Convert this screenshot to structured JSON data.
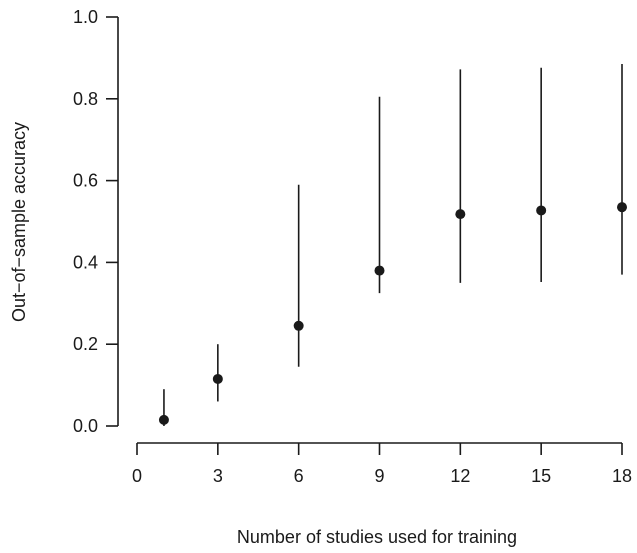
{
  "chart_data": {
    "type": "scatter",
    "title": "",
    "xlabel": "Number of studies used for training",
    "ylabel": "Out−of−sample accuracy",
    "x_ticks": [
      0,
      3,
      6,
      9,
      12,
      15,
      18
    ],
    "x_tick_labels": [
      "0",
      "3",
      "6",
      "9",
      "12",
      "15",
      "18"
    ],
    "y_ticks": [
      0.0,
      0.2,
      0.4,
      0.6,
      0.8,
      1.0
    ],
    "y_tick_labels": [
      "0.0",
      "0.2",
      "0.4",
      "0.6",
      "0.8",
      "1.0"
    ],
    "xlim": [
      0,
      18
    ],
    "ylim": [
      0,
      1
    ],
    "grid": false,
    "points": [
      {
        "x": 1,
        "y": 0.015,
        "low": 0.0,
        "high": 0.09
      },
      {
        "x": 3,
        "y": 0.115,
        "low": 0.06,
        "high": 0.2
      },
      {
        "x": 6,
        "y": 0.245,
        "low": 0.145,
        "high": 0.59
      },
      {
        "x": 9,
        "y": 0.38,
        "low": 0.325,
        "high": 0.805
      },
      {
        "x": 12,
        "y": 0.518,
        "low": 0.35,
        "high": 0.872
      },
      {
        "x": 15,
        "y": 0.527,
        "low": 0.352,
        "high": 0.876
      },
      {
        "x": 18,
        "y": 0.535,
        "low": 0.37,
        "high": 0.885
      }
    ]
  }
}
